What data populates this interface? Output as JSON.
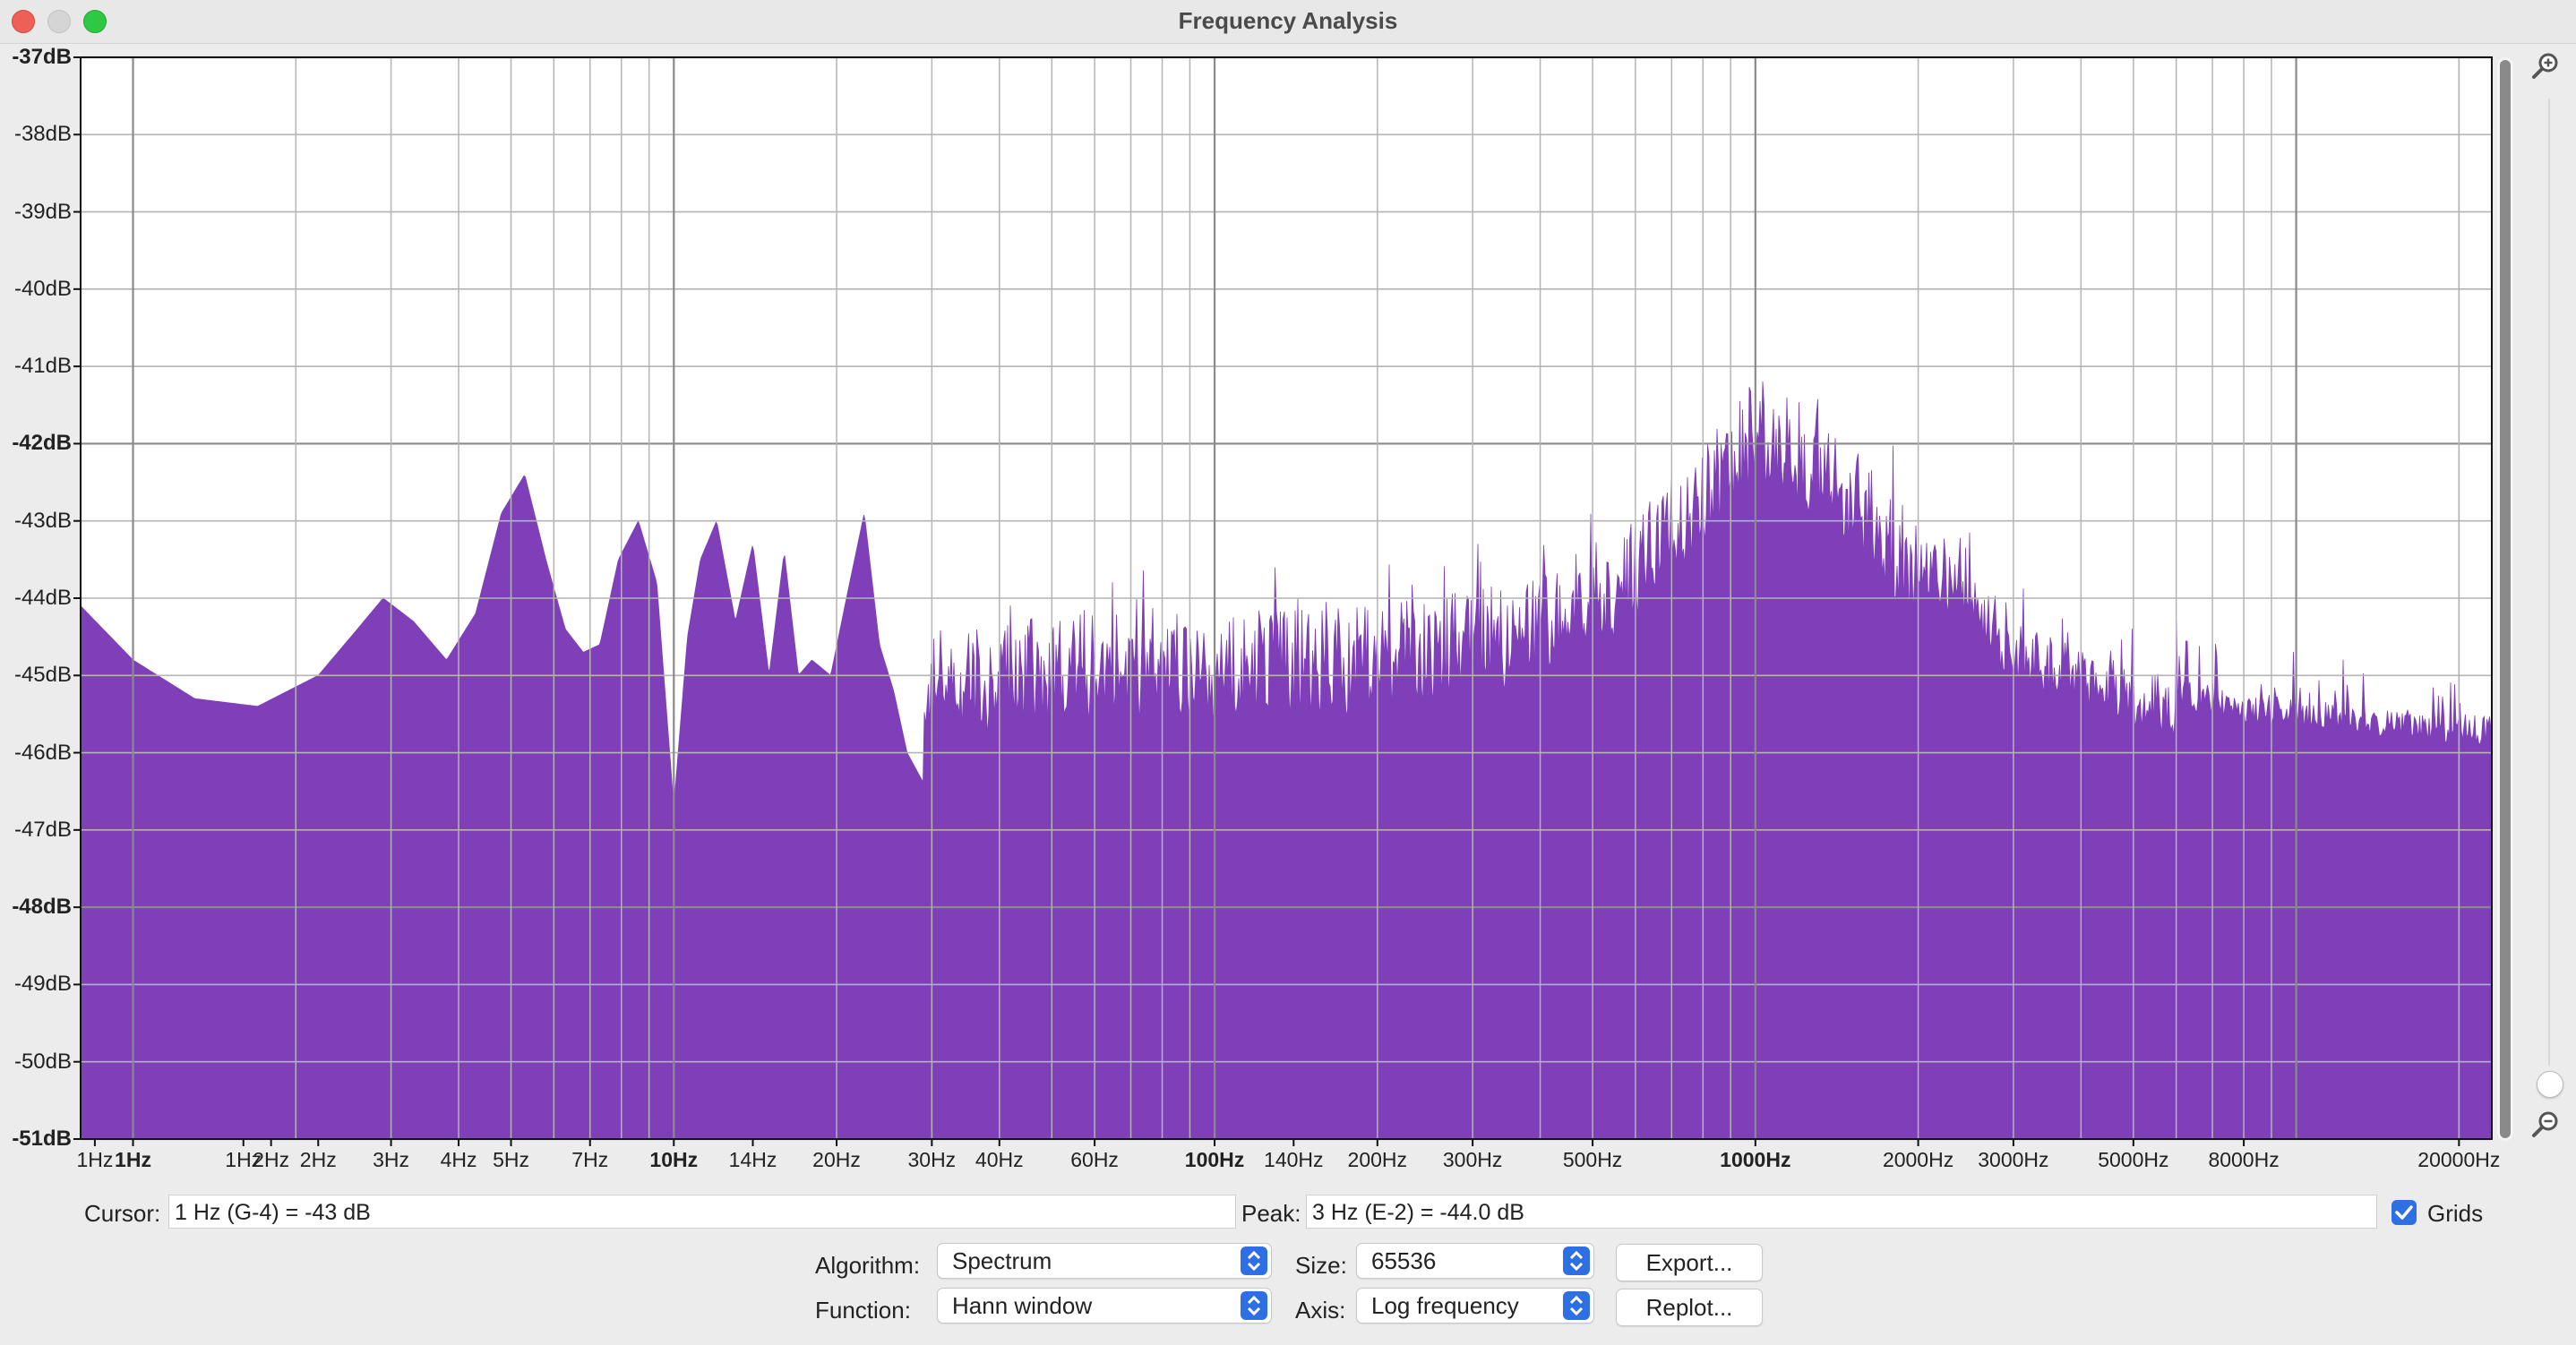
{
  "window": {
    "title": "Frequency Analysis"
  },
  "chart_data": {
    "type": "area",
    "xscale": "log",
    "xlim": [
      0.8,
      23000
    ],
    "ylim": [
      -51,
      -37
    ],
    "grid": true,
    "y_ticks": [
      {
        "label": "-37dB",
        "value": -37,
        "bold": true
      },
      {
        "label": "-38dB",
        "value": -38,
        "bold": false
      },
      {
        "label": "-39dB",
        "value": -39,
        "bold": false
      },
      {
        "label": "-40dB",
        "value": -40,
        "bold": false
      },
      {
        "label": "-41dB",
        "value": -41,
        "bold": false
      },
      {
        "label": "-42dB",
        "value": -42,
        "bold": true
      },
      {
        "label": "-43dB",
        "value": -43,
        "bold": false
      },
      {
        "label": "-44dB",
        "value": -44,
        "bold": false
      },
      {
        "label": "-45dB",
        "value": -45,
        "bold": false
      },
      {
        "label": "-46dB",
        "value": -46,
        "bold": false
      },
      {
        "label": "-47dB",
        "value": -47,
        "bold": false
      },
      {
        "label": "-48dB",
        "value": -48,
        "bold": true
      },
      {
        "label": "-49dB",
        "value": -49,
        "bold": false
      },
      {
        "label": "-50dB",
        "value": -50,
        "bold": false
      },
      {
        "label": "-51dB",
        "value": -51,
        "bold": true
      }
    ],
    "x_ticks": [
      {
        "label": "1Hz",
        "value": 0.85,
        "bold": false
      },
      {
        "label": "1Hz",
        "value": 1,
        "bold": true
      },
      {
        "label": "1Hz",
        "value": 1.6,
        "bold": false
      },
      {
        "label": "2Hz",
        "value": 1.8,
        "bold": false
      },
      {
        "label": "2Hz",
        "value": 2.2,
        "bold": false
      },
      {
        "label": "3Hz",
        "value": 3,
        "bold": false
      },
      {
        "label": "4Hz",
        "value": 4,
        "bold": false
      },
      {
        "label": "5Hz",
        "value": 5,
        "bold": false
      },
      {
        "label": "7Hz",
        "value": 7,
        "bold": false
      },
      {
        "label": "10Hz",
        "value": 10,
        "bold": true
      },
      {
        "label": "14Hz",
        "value": 14,
        "bold": false
      },
      {
        "label": "20Hz",
        "value": 20,
        "bold": false
      },
      {
        "label": "30Hz",
        "value": 30,
        "bold": false
      },
      {
        "label": "40Hz",
        "value": 40,
        "bold": false
      },
      {
        "label": "60Hz",
        "value": 60,
        "bold": false
      },
      {
        "label": "100Hz",
        "value": 100,
        "bold": true
      },
      {
        "label": "140Hz",
        "value": 140,
        "bold": false
      },
      {
        "label": "200Hz",
        "value": 200,
        "bold": false
      },
      {
        "label": "300Hz",
        "value": 300,
        "bold": false
      },
      {
        "label": "500Hz",
        "value": 500,
        "bold": false
      },
      {
        "label": "1000Hz",
        "value": 1000,
        "bold": true
      },
      {
        "label": "2000Hz",
        "value": 2000,
        "bold": false
      },
      {
        "label": "3000Hz",
        "value": 3000,
        "bold": false
      },
      {
        "label": "5000Hz",
        "value": 5000,
        "bold": false
      },
      {
        "label": "8000Hz",
        "value": 8000,
        "bold": false
      },
      {
        "label": "20000Hz",
        "value": 20000,
        "bold": false
      }
    ],
    "series": [
      {
        "fill_color": "#7e3fb8",
        "x": [
          0.8,
          1,
          1.3,
          1.7,
          2.2,
          2.6,
          2.9,
          3.3,
          3.8,
          4.3,
          4.8,
          5.3,
          5.8,
          6.3,
          6.8,
          7.3,
          7.9,
          8.6,
          9.3,
          10,
          10.6,
          11.2,
          12,
          13,
          14,
          15,
          16,
          17,
          18,
          19.5,
          21,
          22.5,
          24,
          25.5,
          27,
          29
        ],
        "y": [
          -44.1,
          -44.8,
          -45.3,
          -45.4,
          -45.0,
          -44.4,
          -44.0,
          -44.3,
          -44.8,
          -44.2,
          -42.9,
          -42.4,
          -43.5,
          -44.4,
          -44.7,
          -44.6,
          -43.5,
          -43.0,
          -43.8,
          -46.7,
          -44.5,
          -43.5,
          -43.0,
          -44.3,
          -43.3,
          -45.0,
          -43.4,
          -45.0,
          -44.8,
          -45.0,
          -43.9,
          -42.9,
          -44.6,
          -45.2,
          -46.0,
          -46.4
        ],
        "dense_envelope_hz": [
          30,
          50,
          100,
          200,
          350,
          600,
          850,
          1000,
          1150,
          1500,
          2000,
          3000,
          5000,
          8000,
          13000,
          22000
        ],
        "dense_envelope_db": [
          -44.5,
          -44.2,
          -44.2,
          -44.1,
          -43.8,
          -43.0,
          -41.8,
          -41.2,
          -41.3,
          -42.0,
          -43.0,
          -44.3,
          -44.9,
          -45.2,
          -45.4,
          -45.5
        ]
      }
    ]
  },
  "status": {
    "cursor_label": "Cursor:",
    "cursor_value": "1 Hz (G-4) = -43 dB",
    "peak_label": "Peak:",
    "peak_value": "3 Hz (E-2) = -44.0 dB",
    "grids_label": "Grids",
    "grids_checked": true
  },
  "controls": {
    "algorithm_label": "Algorithm:",
    "algorithm_value": "Spectrum",
    "function_label": "Function:",
    "function_value": "Hann window",
    "size_label": "Size:",
    "size_value": "65536",
    "axis_label": "Axis:",
    "axis_value": "Log frequency",
    "export_label": "Export...",
    "replot_label": "Replot..."
  }
}
